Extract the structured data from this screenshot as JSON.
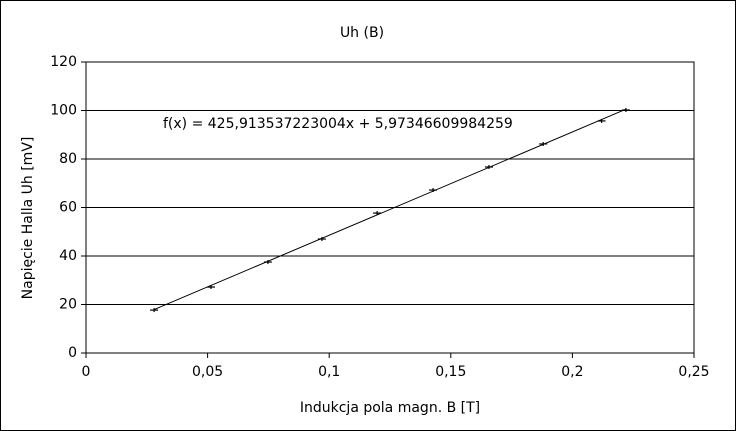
{
  "chart_data": {
    "type": "scatter",
    "title": "Uh (B)",
    "x_label": "Indukcja pola magn. B [T]",
    "y_label": "Napięcie Halla Uh [mV]",
    "x": [
      0.028,
      0.0514,
      0.0748,
      0.097,
      0.1197,
      0.1427,
      0.1657,
      0.188,
      0.212,
      0.222
    ],
    "values": [
      17.7,
      27.2,
      37.5,
      47,
      57.7,
      67.2,
      76.7,
      86.2,
      95.7,
      100.2
    ],
    "color": "#000000",
    "trendline": {
      "slope": 425.913537223004,
      "intercept": 5.97346609984259,
      "label": "f(x) = 425,913537223004x + 5,97346609984259"
    },
    "xlim": [
      0,
      0.25
    ],
    "ylim": [
      0,
      120
    ],
    "xticks": [
      0,
      {
        "value": 0.05,
        "label": "0,05"
      },
      {
        "value": 0.1,
        "label": "0,1"
      },
      {
        "value": 0.15,
        "label": "0,15"
      },
      {
        "value": 0.2,
        "label": "0,2"
      },
      {
        "value": 0.25,
        "label": "0,25"
      }
    ],
    "yticks": [
      0,
      20,
      40,
      60,
      80,
      100,
      120
    ],
    "grid": true
  }
}
